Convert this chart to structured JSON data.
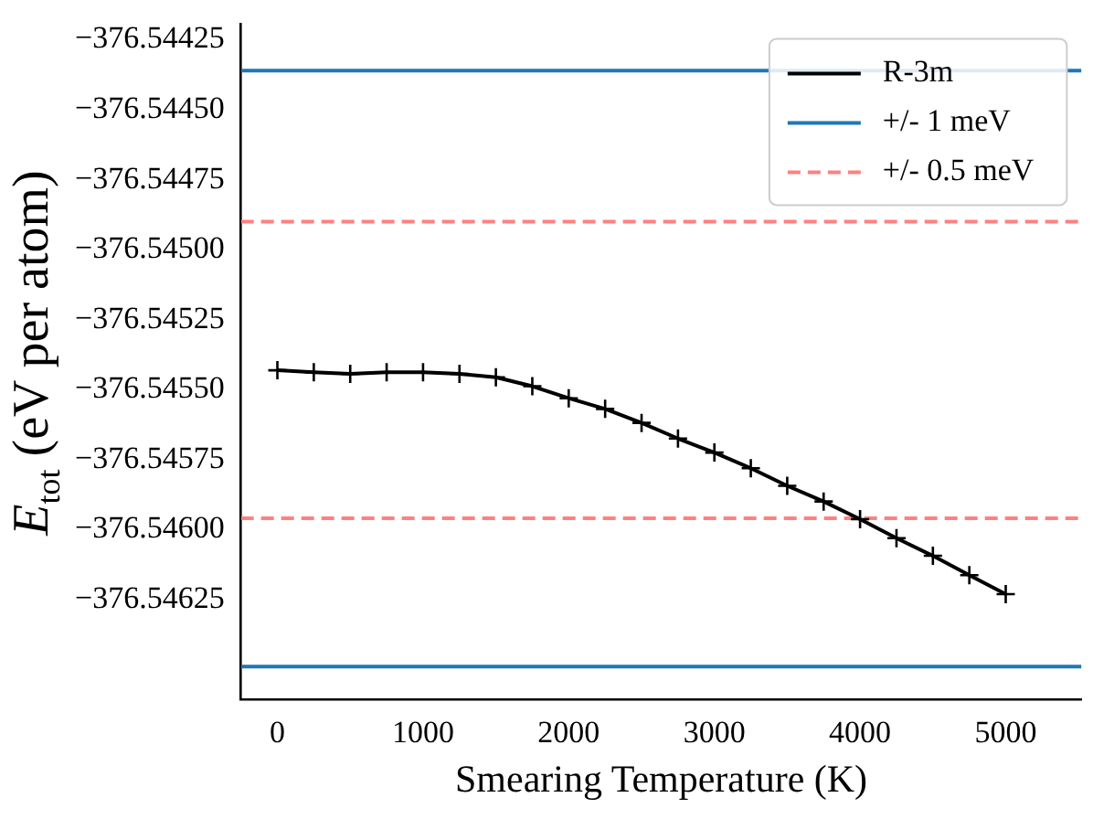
{
  "chart_data": {
    "type": "line",
    "xlabel": "Smearing Temperature (K)",
    "ylabel": "E$_{tot}$ (eV per atom)",
    "x": [
      0,
      250,
      500,
      750,
      1000,
      1250,
      1500,
      1750,
      2000,
      2250,
      2500,
      2750,
      3000,
      3250,
      3500,
      3750,
      4000,
      4250,
      4500,
      4750,
      5000
    ],
    "series": [
      {
        "name": "R-3m",
        "color": "#000000",
        "values": [
          -376.545431,
          -376.545438,
          -376.545444,
          -376.545438,
          -376.545438,
          -376.545444,
          -376.545456,
          -376.545488,
          -376.545531,
          -376.545569,
          -376.545619,
          -376.545675,
          -376.545725,
          -376.545781,
          -376.545844,
          -376.5459,
          -376.545963,
          -376.546031,
          -376.546094,
          -376.546163,
          -376.546231
        ]
      }
    ],
    "ref_lines": [
      {
        "axis": "y",
        "value": -376.54436,
        "label": "+/- 1 meV",
        "color": "#1f77b4",
        "line_style": "solid"
      },
      {
        "axis": "y",
        "value": -376.54649,
        "color": "#1f77b4",
        "line_style": "solid"
      },
      {
        "axis": "y",
        "value": -376.5449,
        "label": "+/- 0.5 meV",
        "color": "#ff8080",
        "line_style": "dashed"
      },
      {
        "axis": "y",
        "value": -376.54596,
        "color": "#ff8080",
        "line_style": "dashed"
      }
    ],
    "xlim": [
      -250,
      5520
    ],
    "xticks": [
      0,
      1000,
      2000,
      3000,
      4000,
      5000
    ],
    "ylim": [
      -376.546606,
      -376.544194
    ],
    "yticks": [
      {
        "value": -376.54625,
        "label": "−376.54625"
      },
      {
        "value": -376.546,
        "label": "−376.54600"
      },
      {
        "value": -376.54575,
        "label": "−376.54575"
      },
      {
        "value": -376.5455,
        "label": "−376.54550"
      },
      {
        "value": -376.54525,
        "label": "−376.54525"
      },
      {
        "value": -376.545,
        "label": "−376.54500"
      },
      {
        "value": -376.54475,
        "label": "−376.54475"
      },
      {
        "value": -376.5445,
        "label": "−376.54450"
      },
      {
        "value": -376.54425,
        "label": "−376.54425"
      }
    ],
    "marker": "cross",
    "line_style": "solid",
    "legend": "top right",
    "grid": false
  }
}
